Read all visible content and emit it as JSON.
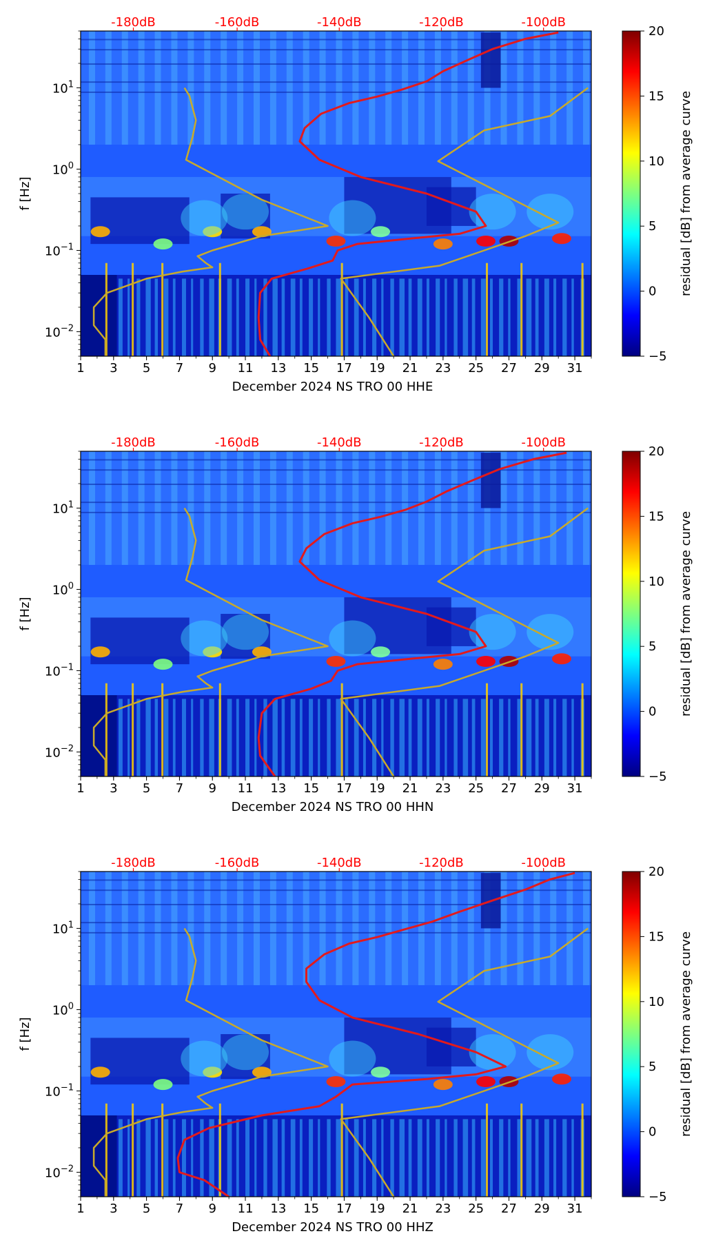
{
  "chart_data": [
    {
      "type": "heatmap",
      "title": "",
      "xlabel": "December 2024 NS TRO 00 HHE",
      "ylabel": "f [Hz]",
      "x_range": [
        1,
        32
      ],
      "x_ticks": [
        1,
        3,
        5,
        7,
        9,
        11,
        13,
        15,
        17,
        19,
        21,
        23,
        25,
        27,
        29,
        31
      ],
      "y_scale": "log",
      "y_range_hz": [
        0.005,
        50
      ],
      "y_ticks": [
        "10^-2",
        "10^-1",
        "10^0",
        "10^1"
      ],
      "top_axis_labels": [
        "-180dB",
        "-160dB",
        "-140dB",
        "-120dB",
        "-100dB"
      ],
      "colorbar": {
        "label": "residual [dB] from average curve",
        "range": [
          -5,
          20
        ],
        "ticks": [
          "−5",
          "0",
          "5",
          "10",
          "15",
          "20"
        ]
      },
      "colormap": [
        "#00007f",
        "#0000ff",
        "#007fff",
        "#00ffff",
        "#7fff7f",
        "#ffff00",
        "#ff7f00",
        "#ff0000",
        "#7f0000"
      ],
      "series": [
        {
          "name": "average PSD (red)",
          "color": "#e31a1c",
          "points_day_hz": [
            [
              12.5,
              0.005
            ],
            [
              11.9,
              0.008
            ],
            [
              11.8,
              0.015
            ],
            [
              11.9,
              0.03
            ],
            [
              12.6,
              0.045
            ],
            [
              14.8,
              0.06
            ],
            [
              16.3,
              0.075
            ],
            [
              16.6,
              0.1
            ],
            [
              17.8,
              0.12
            ],
            [
              21,
              0.14
            ],
            [
              24,
              0.16
            ],
            [
              25.6,
              0.2
            ],
            [
              25,
              0.3
            ],
            [
              22,
              0.5
            ],
            [
              18,
              0.8
            ],
            [
              15.5,
              1.3
            ],
            [
              14.3,
              2.2
            ],
            [
              14.6,
              3.2
            ],
            [
              15.6,
              4.8
            ],
            [
              17.3,
              6.5
            ],
            [
              19,
              7.8
            ],
            [
              20.5,
              9.5
            ],
            [
              22,
              12
            ],
            [
              23,
              16
            ],
            [
              24.5,
              22
            ],
            [
              26,
              30
            ],
            [
              28,
              40
            ],
            [
              30,
              48
            ]
          ]
        },
        {
          "name": "NLNM/NHNM model (olive)",
          "color": "#c9aa2a",
          "points_day_hz": [
            [
              2.5,
              0.005
            ],
            [
              2.5,
              0.008
            ],
            [
              1.8,
              0.012
            ],
            [
              1.8,
              0.02
            ],
            [
              2.6,
              0.03
            ],
            [
              5,
              0.045
            ],
            [
              7.2,
              0.055
            ],
            [
              9,
              0.062
            ],
            [
              8.6,
              0.07
            ],
            [
              8.1,
              0.085
            ],
            [
              9,
              0.1
            ],
            [
              12,
              0.15
            ],
            [
              16,
              0.2
            ],
            [
              12,
              0.42
            ],
            [
              7.4,
              1.3
            ],
            [
              7.8,
              2.5
            ],
            [
              8,
              4
            ],
            [
              7.6,
              8
            ],
            [
              7.3,
              10
            ]
          ]
        },
        {
          "name": "NLNM/NHNM model upper (olive)",
          "color": "#c9aa2a",
          "points_day_hz": [
            [
              20,
              0.005
            ],
            [
              18.5,
              0.015
            ],
            [
              16.8,
              0.045
            ],
            [
              22.8,
              0.065
            ],
            [
              25.5,
              0.1
            ],
            [
              28,
              0.15
            ],
            [
              30,
              0.22
            ],
            [
              22.7,
              1.25
            ],
            [
              25.5,
              3
            ],
            [
              29.5,
              4.5
            ],
            [
              31.8,
              10
            ]
          ]
        }
      ]
    },
    {
      "type": "heatmap",
      "title": "",
      "xlabel": "December 2024 NS TRO 00 HHN",
      "ylabel": "f [Hz]",
      "x_range": [
        1,
        32
      ],
      "x_ticks": [
        1,
        3,
        5,
        7,
        9,
        11,
        13,
        15,
        17,
        19,
        21,
        23,
        25,
        27,
        29,
        31
      ],
      "y_scale": "log",
      "y_range_hz": [
        0.005,
        50
      ],
      "y_ticks": [
        "10^-2",
        "10^-1",
        "10^0",
        "10^1"
      ],
      "top_axis_labels": [
        "-180dB",
        "-160dB",
        "-140dB",
        "-120dB",
        "-100dB"
      ],
      "colorbar": {
        "label": "residual [dB] from average curve",
        "range": [
          -5,
          20
        ],
        "ticks": [
          "−5",
          "0",
          "5",
          "10",
          "15",
          "20"
        ]
      },
      "colormap": [
        "#00007f",
        "#0000ff",
        "#007fff",
        "#00ffff",
        "#7fff7f",
        "#ffff00",
        "#ff7f00",
        "#ff0000",
        "#7f0000"
      ],
      "series": [
        {
          "name": "average PSD (red)",
          "color": "#e31a1c",
          "points_day_hz": [
            [
              12.8,
              0.005
            ],
            [
              11.9,
              0.009
            ],
            [
              11.8,
              0.015
            ],
            [
              12,
              0.03
            ],
            [
              12.8,
              0.045
            ],
            [
              15,
              0.06
            ],
            [
              16.2,
              0.075
            ],
            [
              16.6,
              0.1
            ],
            [
              17.8,
              0.12
            ],
            [
              21,
              0.14
            ],
            [
              24,
              0.16
            ],
            [
              25.6,
              0.2
            ],
            [
              25,
              0.3
            ],
            [
              22,
              0.5
            ],
            [
              18,
              0.8
            ],
            [
              15.5,
              1.3
            ],
            [
              14.3,
              2.2
            ],
            [
              14.7,
              3.2
            ],
            [
              15.8,
              4.8
            ],
            [
              17.5,
              6.5
            ],
            [
              19.2,
              7.8
            ],
            [
              20.7,
              9.5
            ],
            [
              22,
              12
            ],
            [
              23.2,
              16
            ],
            [
              24.8,
              22
            ],
            [
              26.4,
              30
            ],
            [
              28.5,
              40
            ],
            [
              30.5,
              48
            ]
          ]
        },
        {
          "name": "NLNM/NHNM model (olive)",
          "color": "#c9aa2a",
          "points_day_hz": [
            [
              2.5,
              0.005
            ],
            [
              2.5,
              0.008
            ],
            [
              1.8,
              0.012
            ],
            [
              1.8,
              0.02
            ],
            [
              2.6,
              0.03
            ],
            [
              5,
              0.045
            ],
            [
              7.2,
              0.055
            ],
            [
              9,
              0.062
            ],
            [
              8.6,
              0.07
            ],
            [
              8.1,
              0.085
            ],
            [
              9,
              0.1
            ],
            [
              12,
              0.15
            ],
            [
              16,
              0.2
            ],
            [
              12,
              0.42
            ],
            [
              7.4,
              1.3
            ],
            [
              7.8,
              2.5
            ],
            [
              8,
              4
            ],
            [
              7.6,
              8
            ],
            [
              7.3,
              10
            ]
          ]
        },
        {
          "name": "NLNM/NHNM model upper (olive)",
          "color": "#c9aa2a",
          "points_day_hz": [
            [
              20,
              0.005
            ],
            [
              18.5,
              0.015
            ],
            [
              16.8,
              0.045
            ],
            [
              22.8,
              0.065
            ],
            [
              25.5,
              0.1
            ],
            [
              28,
              0.15
            ],
            [
              30,
              0.22
            ],
            [
              22.7,
              1.25
            ],
            [
              25.5,
              3
            ],
            [
              29.5,
              4.5
            ],
            [
              31.8,
              10
            ]
          ]
        }
      ]
    },
    {
      "type": "heatmap",
      "title": "",
      "xlabel": "December 2024 NS TRO 00 HHZ",
      "ylabel": "f [Hz]",
      "x_range": [
        1,
        32
      ],
      "x_ticks": [
        1,
        3,
        5,
        7,
        9,
        11,
        13,
        15,
        17,
        19,
        21,
        23,
        25,
        27,
        29,
        31
      ],
      "y_scale": "log",
      "y_range_hz": [
        0.005,
        50
      ],
      "y_ticks": [
        "10^-2",
        "10^-1",
        "10^0",
        "10^1"
      ],
      "top_axis_labels": [
        "-180dB",
        "-160dB",
        "-140dB",
        "-120dB",
        "-100dB"
      ],
      "colorbar": {
        "label": "residual [dB] from average curve",
        "range": [
          -5,
          20
        ],
        "ticks": [
          "−5",
          "0",
          "5",
          "10",
          "15",
          "20"
        ]
      },
      "colormap": [
        "#00007f",
        "#0000ff",
        "#007fff",
        "#00ffff",
        "#7fff7f",
        "#ffff00",
        "#ff7f00",
        "#ff0000",
        "#7f0000"
      ],
      "series": [
        {
          "name": "average PSD (red)",
          "color": "#e31a1c",
          "points_day_hz": [
            [
              10,
              0.005
            ],
            [
              8.5,
              0.008
            ],
            [
              7,
              0.01
            ],
            [
              6.9,
              0.015
            ],
            [
              7.3,
              0.025
            ],
            [
              8.8,
              0.035
            ],
            [
              12,
              0.05
            ],
            [
              15.5,
              0.065
            ],
            [
              16.5,
              0.085
            ],
            [
              17.5,
              0.12
            ],
            [
              22,
              0.14
            ],
            [
              25,
              0.16
            ],
            [
              26.8,
              0.2
            ],
            [
              25,
              0.3
            ],
            [
              21.5,
              0.5
            ],
            [
              17.5,
              0.8
            ],
            [
              15.5,
              1.3
            ],
            [
              14.7,
              2.2
            ],
            [
              14.7,
              3.2
            ],
            [
              15.8,
              4.8
            ],
            [
              17.3,
              6.5
            ],
            [
              19,
              7.8
            ],
            [
              20.5,
              9.5
            ],
            [
              22.3,
              12
            ],
            [
              24,
              16
            ],
            [
              26,
              22
            ],
            [
              28,
              30
            ],
            [
              29.5,
              40
            ],
            [
              31,
              48
            ]
          ]
        },
        {
          "name": "NLNM/NHNM model (olive)",
          "color": "#c9aa2a",
          "points_day_hz": [
            [
              2.5,
              0.005
            ],
            [
              2.5,
              0.008
            ],
            [
              1.8,
              0.012
            ],
            [
              1.8,
              0.02
            ],
            [
              2.6,
              0.03
            ],
            [
              5,
              0.045
            ],
            [
              7.2,
              0.055
            ],
            [
              9,
              0.062
            ],
            [
              8.6,
              0.07
            ],
            [
              8.1,
              0.085
            ],
            [
              9,
              0.1
            ],
            [
              12,
              0.15
            ],
            [
              16,
              0.2
            ],
            [
              12,
              0.42
            ],
            [
              7.4,
              1.3
            ],
            [
              7.8,
              2.5
            ],
            [
              8,
              4
            ],
            [
              7.6,
              8
            ],
            [
              7.3,
              10
            ]
          ]
        },
        {
          "name": "NLNM/NHNM model upper (olive)",
          "color": "#c9aa2a",
          "points_day_hz": [
            [
              20,
              0.005
            ],
            [
              18.5,
              0.015
            ],
            [
              16.8,
              0.045
            ],
            [
              22.8,
              0.065
            ],
            [
              25.5,
              0.1
            ],
            [
              28,
              0.15
            ],
            [
              30,
              0.22
            ],
            [
              22.7,
              1.25
            ],
            [
              25.5,
              3
            ],
            [
              29.5,
              4.5
            ],
            [
              31.8,
              10
            ]
          ]
        }
      ]
    }
  ]
}
